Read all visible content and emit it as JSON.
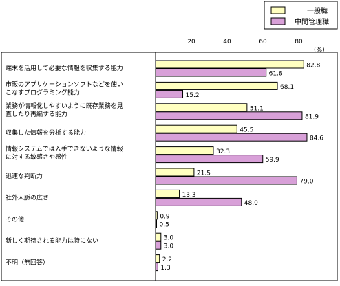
{
  "chart_data": {
    "type": "bar",
    "orientation": "horizontal",
    "unit_label": "(%)",
    "xlim": [
      0,
      90
    ],
    "x_ticks": [
      20,
      40,
      60,
      80
    ],
    "grid": false,
    "legend_position": "top-right",
    "categories": [
      [
        "端末を活用して必要な情報を収集する能力"
      ],
      [
        "市販のアプリケーションソフトなどを使い",
        "こなすプログラミング能力"
      ],
      [
        "業務が情報化しやすいように既存業務を見",
        "直したり再編する能力"
      ],
      [
        "収集した情報を分析する能力"
      ],
      [
        "情報システムでは入手できないような情報",
        "に対する敏感さや感性"
      ],
      [
        "迅速な判断力"
      ],
      [
        "社外人脈の広さ"
      ],
      [
        "その他"
      ],
      [
        "新しく期待される能力は特にない"
      ],
      [
        "不明（無回答）"
      ]
    ],
    "series": [
      {
        "name": "一般職",
        "color": "#ffffc0",
        "values": [
          82.8,
          68.1,
          51.1,
          45.5,
          32.3,
          21.5,
          13.3,
          0.9,
          3.0,
          2.2
        ],
        "value_labels": [
          "82.8",
          "68.1",
          "51.1",
          "45.5",
          "32.3",
          "21.5",
          "13.3",
          "0.9",
          "3.0",
          "2.2"
        ]
      },
      {
        "name": "中間管理職",
        "color": "#d8a0d8",
        "values": [
          61.8,
          15.2,
          81.9,
          84.6,
          59.9,
          79.0,
          48.0,
          0.5,
          3.0,
          1.3
        ],
        "value_labels": [
          "61.8",
          "15.2",
          "81.9",
          "84.6",
          "59.9",
          "79.0",
          "48.0",
          "0.5",
          "3.0",
          "1.3"
        ]
      }
    ]
  }
}
